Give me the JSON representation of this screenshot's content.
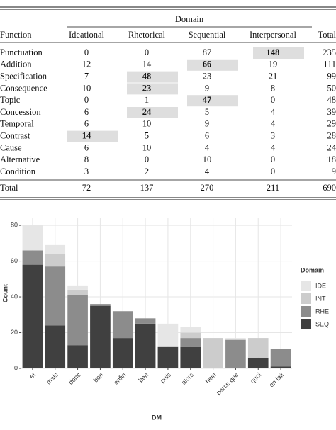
{
  "table": {
    "domain_header": "Domain",
    "columns": [
      "Function",
      "Ideational",
      "Rhetorical",
      "Sequential",
      "Interpersonal",
      "Total"
    ],
    "rows": [
      [
        "Punctuation",
        0,
        0,
        87,
        148,
        235
      ],
      [
        "Addition",
        12,
        14,
        66,
        19,
        111
      ],
      [
        "Specification",
        7,
        48,
        23,
        21,
        99
      ],
      [
        "Consequence",
        10,
        23,
        9,
        8,
        50
      ],
      [
        "Topic",
        0,
        1,
        47,
        0,
        48
      ],
      [
        "Concession",
        6,
        24,
        5,
        4,
        39
      ],
      [
        "Temporal",
        6,
        10,
        9,
        4,
        29
      ],
      [
        "Contrast",
        14,
        5,
        6,
        3,
        28
      ],
      [
        "Cause",
        6,
        10,
        4,
        4,
        24
      ],
      [
        "Alternative",
        8,
        0,
        10,
        0,
        18
      ],
      [
        "Condition",
        3,
        2,
        4,
        0,
        9
      ]
    ],
    "total_row": [
      "Total",
      72,
      137,
      270,
      211,
      690
    ],
    "highlighted_cells": [
      [
        0,
        4
      ],
      [
        1,
        3
      ],
      [
        2,
        2
      ],
      [
        3,
        2
      ],
      [
        4,
        3
      ],
      [
        5,
        2
      ],
      [
        7,
        1
      ]
    ]
  },
  "chart_data": {
    "type": "stacked_bar",
    "x_label": "DM",
    "y_label": "Count",
    "legend_title": "Domain",
    "categories": [
      "et",
      "mais",
      "donc",
      "bon",
      "enfin",
      "ben",
      "puis",
      "alors",
      "hein",
      "parce que",
      "quoi",
      "en fait"
    ],
    "series": [
      {
        "name": "IDE",
        "color": "#e6e6e6",
        "values": [
          14,
          5,
          2,
          0,
          0,
          0,
          13,
          3,
          0,
          1,
          0,
          0
        ]
      },
      {
        "name": "INT",
        "color": "#cccccc",
        "values": [
          0,
          7,
          3,
          0,
          0,
          0,
          0,
          3,
          17,
          0,
          11,
          0
        ]
      },
      {
        "name": "RHE",
        "color": "#8c8c8c",
        "values": [
          8,
          33,
          28,
          1,
          15,
          3,
          0,
          5,
          0,
          16,
          0,
          10
        ]
      },
      {
        "name": "SEQ",
        "color": "#404040",
        "values": [
          58,
          24,
          13,
          35,
          17,
          25,
          12,
          12,
          0,
          0,
          6,
          1
        ]
      }
    ],
    "ylim": [
      0,
      84
    ],
    "yticks": [
      0,
      20,
      40,
      60,
      80
    ],
    "grid": true,
    "legend_position": "right"
  }
}
